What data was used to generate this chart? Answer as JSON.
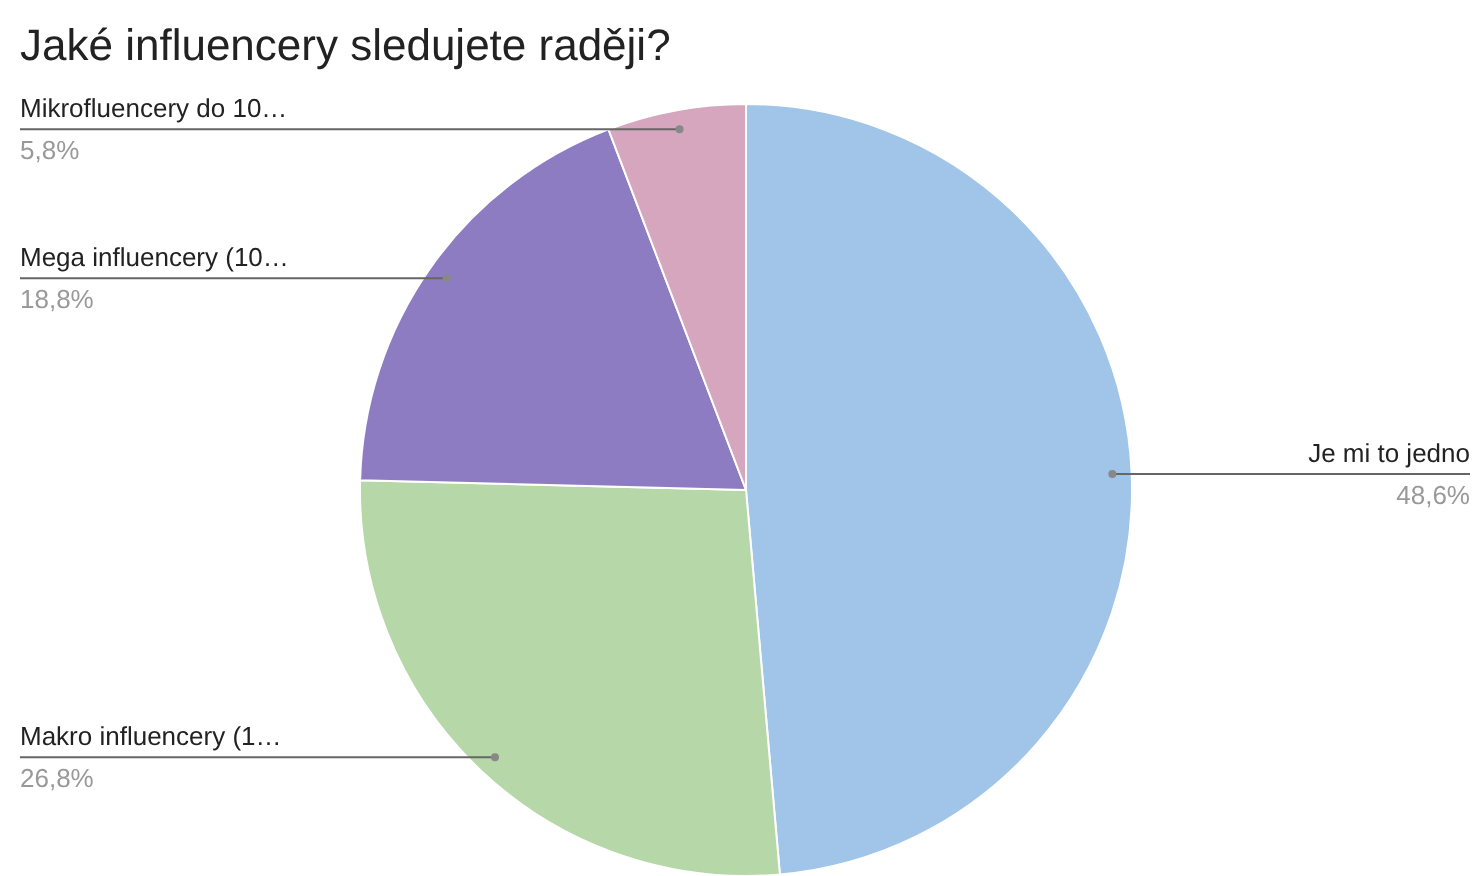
{
  "chart_data": {
    "type": "pie",
    "title": "Jaké influencery sledujete raději?",
    "categories": [
      "Je mi to jedno",
      "Makro influencery (1…",
      "Mega influencery (10…",
      "Mikrofluencery do 10…"
    ],
    "values": [
      48.6,
      26.8,
      18.8,
      5.8
    ],
    "value_labels": [
      "48,6%",
      "26,8%",
      "18,8%",
      "5,8%"
    ],
    "colors": [
      "#a1c4e9",
      "#b6d7a8",
      "#8e7cc3",
      "#d5a6bd"
    ],
    "legend": false
  }
}
